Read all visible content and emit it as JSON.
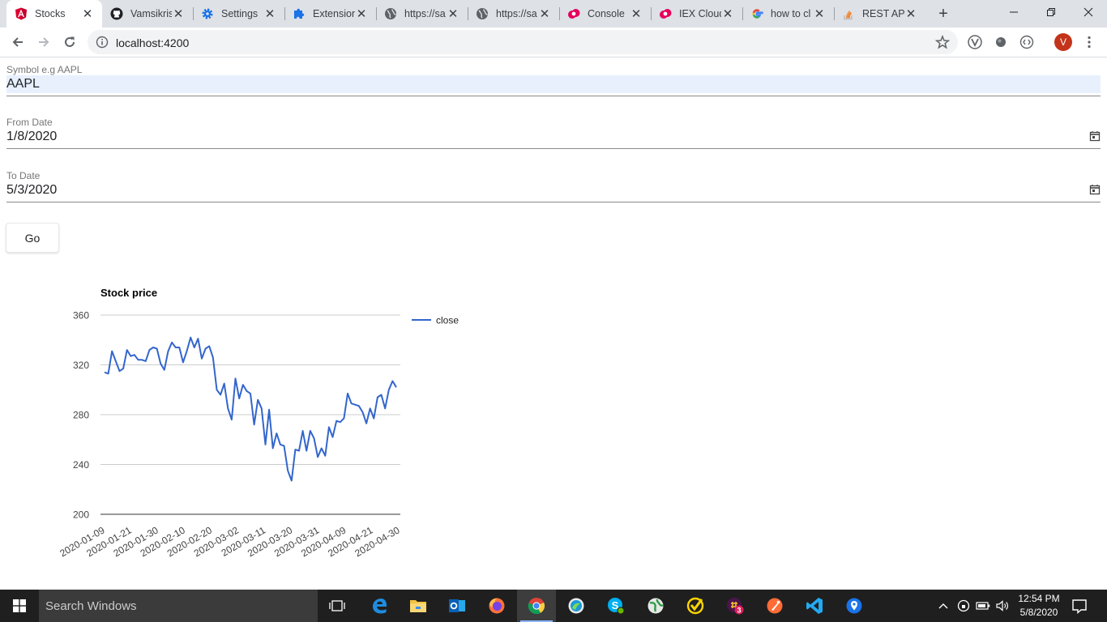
{
  "browser": {
    "tabs": [
      {
        "label": "Stocks",
        "icon": "angular-icon"
      },
      {
        "label": "Vamsikris",
        "icon": "github-icon"
      },
      {
        "label": "Settings",
        "icon": "gear-icon"
      },
      {
        "label": "Extension",
        "icon": "puzzle-icon"
      },
      {
        "label": "https://sa",
        "icon": "globe-icon"
      },
      {
        "label": "https://sa",
        "icon": "globe-icon"
      },
      {
        "label": "Console",
        "icon": "iex-icon"
      },
      {
        "label": "IEX Cloud",
        "icon": "iex-icon"
      },
      {
        "label": "how to cl",
        "icon": "google-icon"
      },
      {
        "label": "REST API",
        "icon": "stackoverflow-icon"
      }
    ],
    "new_tab_label": "+",
    "url": "localhost:4200",
    "profile_initial": "V"
  },
  "form": {
    "symbol": {
      "label": "Symbol e.g AAPL",
      "value": "AAPL"
    },
    "from_date": {
      "label": "From Date",
      "value": "1/8/2020"
    },
    "to_date": {
      "label": "To Date",
      "value": "5/3/2020"
    },
    "go_label": "Go"
  },
  "chart_data": {
    "type": "line",
    "title": "Stock price",
    "xlabel": "",
    "ylabel": "",
    "ylim": [
      200,
      360
    ],
    "yticks": [
      200,
      240,
      280,
      320,
      360
    ],
    "xtick_labels": [
      "2020-01-09",
      "2020-01-21",
      "2020-01-30",
      "2020-02-10",
      "2020-02-20",
      "2020-03-02",
      "2020-03-11",
      "2020-03-20",
      "2020-03-31",
      "2020-04-09",
      "2020-04-21",
      "2020-04-30"
    ],
    "grid": true,
    "legend_position": "right",
    "series": [
      {
        "name": "close",
        "color": "#3366cc",
        "values": [
          314,
          313,
          331,
          323,
          315,
          317,
          332,
          327,
          328,
          324,
          324,
          323,
          332,
          334,
          333,
          321,
          316,
          331,
          338,
          334,
          334,
          322,
          331,
          342,
          334,
          341,
          325,
          333,
          335,
          326,
          300,
          296,
          305,
          285,
          276,
          309,
          293,
          304,
          299,
          297,
          272,
          292,
          285,
          256,
          284,
          253,
          265,
          256,
          255,
          235,
          227,
          252,
          251,
          267,
          251,
          267,
          261,
          246,
          253,
          247,
          270,
          262,
          275,
          274,
          277,
          297,
          289,
          288,
          287,
          282,
          273,
          285,
          277,
          294,
          296,
          285,
          300,
          307,
          302
        ]
      }
    ]
  },
  "taskbar": {
    "search_placeholder": "Search Windows",
    "time": "12:54 PM",
    "date": "5/8/2020",
    "badge": "3"
  }
}
